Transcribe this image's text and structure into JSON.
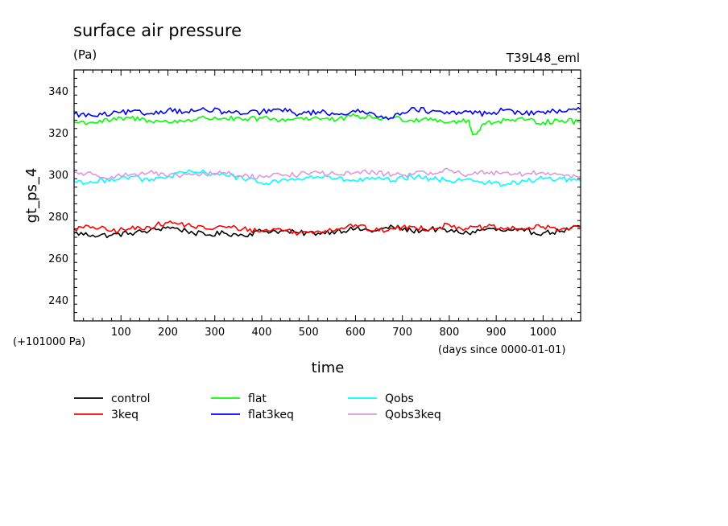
{
  "chart_data": {
    "type": "line",
    "title": "surface air pressure",
    "units": "(Pa)",
    "run_label": "T39L48_eml",
    "ylabel": "gt_ps_4",
    "y_offset_label": "(+101000 Pa)",
    "xlabel": "time",
    "x_units_label": "(days since 0000-01-01)",
    "xlim": [
      0,
      1080
    ],
    "ylim": [
      230,
      350
    ],
    "x_ticks": [
      "100",
      "200",
      "300",
      "400",
      "500",
      "600",
      "700",
      "800",
      "900",
      "1000"
    ],
    "y_ticks": [
      "240",
      "260",
      "280",
      "300",
      "320",
      "340"
    ],
    "grid": false,
    "legend_position": "bottom",
    "series": [
      {
        "name": "control",
        "color": "#000000",
        "x": [
          0,
          40,
          80,
          120,
          160,
          200,
          240,
          280,
          320,
          360,
          400,
          440,
          480,
          520,
          560,
          600,
          640,
          680,
          720,
          760,
          800,
          840,
          880,
          920,
          960,
          1000,
          1040,
          1080
        ],
        "values": [
          272,
          271,
          271,
          272,
          273,
          275,
          273,
          271,
          272,
          271,
          273,
          273,
          272,
          272,
          273,
          274,
          273,
          275,
          273,
          274,
          273,
          272,
          274,
          273,
          273,
          272,
          273,
          275
        ]
      },
      {
        "name": "3keq",
        "color": "#ff0000",
        "x": [
          0,
          40,
          80,
          120,
          160,
          200,
          240,
          280,
          320,
          360,
          400,
          440,
          480,
          520,
          560,
          600,
          640,
          680,
          720,
          760,
          800,
          840,
          880,
          920,
          960,
          1000,
          1040,
          1080
        ],
        "values": [
          274,
          275,
          273,
          274,
          275,
          277,
          276,
          274,
          275,
          274,
          273,
          274,
          272,
          273,
          274,
          276,
          273,
          274,
          275,
          274,
          276,
          274,
          275,
          274,
          274,
          275,
          274,
          275
        ]
      },
      {
        "name": "flat",
        "color": "#00ff00",
        "x": [
          0,
          40,
          80,
          120,
          160,
          200,
          240,
          280,
          320,
          360,
          400,
          440,
          480,
          520,
          560,
          600,
          640,
          680,
          720,
          760,
          800,
          840,
          850,
          880,
          920,
          960,
          1000,
          1040,
          1080
        ],
        "values": [
          325,
          325,
          326,
          327,
          326,
          325,
          326,
          327,
          327,
          326,
          327,
          326,
          327,
          327,
          326,
          328,
          327,
          327,
          326,
          327,
          325,
          326,
          319,
          325,
          326,
          326,
          325,
          326,
          325
        ]
      },
      {
        "name": "flat3keq",
        "color": "#0000ff",
        "x": [
          0,
          40,
          80,
          120,
          160,
          200,
          240,
          280,
          320,
          360,
          400,
          440,
          480,
          520,
          560,
          600,
          640,
          680,
          720,
          760,
          800,
          840,
          880,
          920,
          960,
          1000,
          1040,
          1080
        ],
        "values": [
          329,
          328,
          329,
          330,
          329,
          331,
          330,
          331,
          330,
          329,
          330,
          331,
          329,
          330,
          329,
          330,
          329,
          327,
          332,
          330,
          329,
          330,
          329,
          331,
          329,
          330,
          330,
          331
        ]
      },
      {
        "name": "Qobs",
        "color": "#00ffff",
        "x": [
          0,
          40,
          80,
          120,
          160,
          200,
          240,
          280,
          320,
          360,
          400,
          440,
          480,
          520,
          560,
          600,
          640,
          680,
          720,
          760,
          800,
          840,
          880,
          920,
          960,
          1000,
          1040,
          1080
        ],
        "values": [
          297,
          296,
          298,
          299,
          297,
          299,
          301,
          301,
          300,
          298,
          296,
          297,
          298,
          299,
          298,
          297,
          298,
          297,
          299,
          298,
          297,
          298,
          296,
          295,
          297,
          298,
          298,
          297
        ]
      },
      {
        "name": "Qobs3keq",
        "color": "#dd99dd",
        "x": [
          0,
          40,
          80,
          120,
          160,
          200,
          240,
          280,
          320,
          360,
          400,
          440,
          480,
          520,
          560,
          600,
          640,
          680,
          720,
          760,
          800,
          840,
          880,
          920,
          960,
          1000,
          1040,
          1080
        ],
        "values": [
          301,
          300,
          299,
          300,
          301,
          299,
          300,
          300,
          301,
          299,
          299,
          300,
          300,
          301,
          300,
          301,
          301,
          300,
          300,
          301,
          302,
          300,
          301,
          301,
          300,
          301,
          300,
          299
        ]
      }
    ]
  }
}
